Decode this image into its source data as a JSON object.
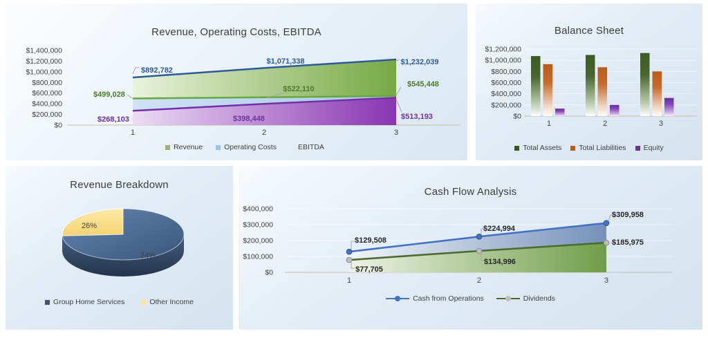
{
  "chart_data": [
    {
      "type": "area",
      "title": "Revenue, Operating Costs, EBITDA",
      "categories": [
        "1",
        "2",
        "3"
      ],
      "series": [
        {
          "name": "Revenue",
          "values": [
            892782,
            1071338,
            1232039
          ],
          "line_color": "#2e5b97",
          "fill_from": "#e9f2db",
          "fill_to": "#76a944",
          "label_color": "#2e5b97",
          "legend_color": "#94b96c"
        },
        {
          "name": "Operating Costs",
          "values": [
            499028,
            522110,
            545448
          ],
          "line_color": "#68a73e",
          "fill_from": "#cfe2f4",
          "fill_to": "#a4c8e8",
          "label_color": "#4e7a2b",
          "legend_color": "#9dc3e6"
        },
        {
          "name": "EBITDA",
          "values": [
            268103,
            398448,
            513193
          ],
          "line_color": "#7330a6",
          "fill_from": "#ecdcf4",
          "fill_to": "#8934b1",
          "label_color": "#7030a0",
          "legend_color": "#b48cd"
        }
      ],
      "ylim": [
        0,
        1400000
      ],
      "ytick_step": 200000,
      "ytick_labels": [
        "$0",
        "$200,000",
        "$400,000",
        "$600,000",
        "$800,000",
        "$1,000,000",
        "$1,200,000",
        "$1,400,000"
      ],
      "grid": false,
      "legend_position": "bottom"
    },
    {
      "type": "bar",
      "title": "Balance Sheet",
      "categories": [
        "1",
        "2",
        "3"
      ],
      "series": [
        {
          "name": "Total Assets",
          "values": [
            1075000,
            1095000,
            1130000
          ],
          "color": "#375623",
          "grad": [
            "#3b5b25",
            "#49682f",
            "#b9c9ab",
            "#fdfefd"
          ]
        },
        {
          "name": "Total Liabilities",
          "values": [
            930000,
            875000,
            800000
          ],
          "color": "#c55a11",
          "grad": [
            "#bd5a17",
            "#c76a2c",
            "#eed3bd",
            "#fefcfa"
          ]
        },
        {
          "name": "Equity",
          "values": [
            135000,
            200000,
            325000
          ],
          "color": "#7030a0",
          "grad": [
            "#6a2d9e",
            "#8348bb",
            "#c9a9e3",
            "#f6f0fb"
          ]
        }
      ],
      "ylim": [
        0,
        1200000
      ],
      "ytick_step": 200000,
      "ytick_labels": [
        "$0",
        "$200,000",
        "$400,000",
        "$600,000",
        "$800,000",
        "$1,000,000",
        "$1,200,000"
      ],
      "grid": true,
      "legend_position": "bottom"
    },
    {
      "type": "pie",
      "title": "Revenue Breakdown",
      "slices": [
        {
          "label": "Group Home Services",
          "pct": 74,
          "fill_from": "#6586b0",
          "fill_to": "#3a567c",
          "legend_color": "#44546a"
        },
        {
          "label": "Other Income",
          "pct": 26,
          "fill_from": "#fdeaa8",
          "fill_to": "#f3d372",
          "legend_color": "#ffe699"
        }
      ],
      "style": "3d",
      "legend_position": "bottom"
    },
    {
      "type": "line",
      "title": "Cash Flow Analysis",
      "categories": [
        "1",
        "2",
        "3"
      ],
      "series": [
        {
          "name": "Cash from Operations",
          "values": [
            129508,
            224994,
            309958
          ],
          "line_color": "#4472c4",
          "marker_fill": "#4472c4",
          "marker_stroke": "#2f528f",
          "area_from": "#f1f5f8",
          "area_to": "#7591ba",
          "label_color": "#262626"
        },
        {
          "name": "Dividends",
          "values": [
            77705,
            134996,
            185975
          ],
          "line_color": "#4e6b2f",
          "marker_fill": "#bfbfbf",
          "marker_stroke": "#8c8c8c",
          "area_from": "#eef3e6",
          "area_to": "#6f9e49",
          "label_color": "#262626"
        }
      ],
      "ylim": [
        0,
        400000
      ],
      "ytick_step": 100000,
      "ytick_labels": [
        "$0",
        "$100,000",
        "$200,000",
        "$300,000",
        "$400,000"
      ],
      "grid": true,
      "legend_position": "bottom"
    }
  ]
}
